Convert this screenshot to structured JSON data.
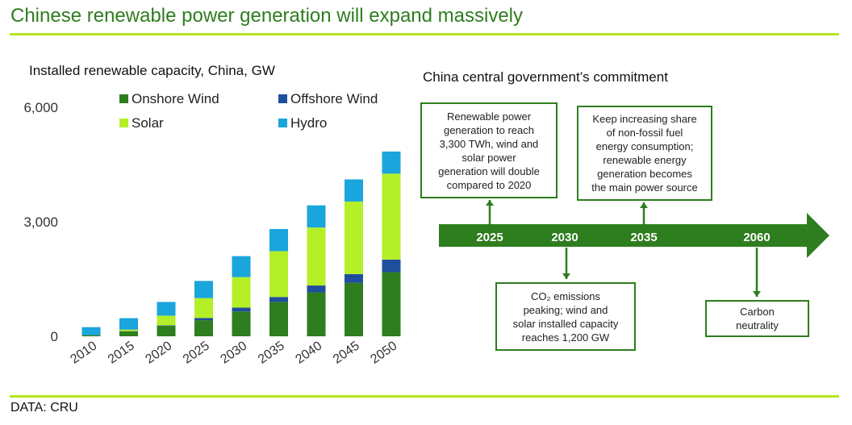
{
  "header": {
    "title": "Chinese renewable power generation will expand massively"
  },
  "footer": {
    "source": "DATA: CRU"
  },
  "colors": {
    "accent_rule": "#b5e61d",
    "brand_green": "#2e7d1e"
  },
  "chart_data": {
    "type": "bar",
    "stacked": true,
    "title": "Installed renewable capacity, China, GW",
    "categories": [
      "2010",
      "2015",
      "2020",
      "2025",
      "2030",
      "2035",
      "2040",
      "2045",
      "2050"
    ],
    "ylim": [
      0,
      6000
    ],
    "yticks": [
      "0",
      "3,000",
      "6,000"
    ],
    "ytick_values": [
      0,
      3000,
      6000
    ],
    "legend_position": "top",
    "series": [
      {
        "name": "Onshore Wind",
        "color": "#2e7d1e",
        "values": [
          30,
          130,
          280,
          420,
          650,
          900,
          1150,
          1400,
          1680
        ]
      },
      {
        "name": "Offshore Wind",
        "color": "#1f4e9c",
        "values": [
          0,
          5,
          10,
          60,
          100,
          130,
          180,
          230,
          330
        ]
      },
      {
        "name": "Solar",
        "color": "#b5ef28",
        "values": [
          0,
          40,
          250,
          520,
          800,
          1200,
          1520,
          1900,
          2250
        ]
      },
      {
        "name": "Hydro",
        "color": "#1aa5dc",
        "values": [
          210,
          300,
          360,
          450,
          550,
          580,
          580,
          580,
          580
        ]
      }
    ]
  },
  "timeline": {
    "title": "China central government’s commitment",
    "years": [
      "2025",
      "2030",
      "2035",
      "2060"
    ],
    "boxes": [
      {
        "lines": [
          "Renewable power",
          "generation to reach",
          "3,300 TWh, wind and",
          "solar power",
          "generation will double",
          "compared to 2020"
        ]
      },
      {
        "lines": [
          "CO₂ emissions",
          "peaking; wind and",
          "solar installed capacity",
          "reaches 1,200 GW"
        ]
      },
      {
        "lines": [
          "Keep increasing share",
          "of non-fossil fuel",
          "energy consumption;",
          "renewable energy",
          "generation becomes",
          "the main power source"
        ]
      },
      {
        "lines": [
          "Carbon",
          "neutrality"
        ]
      }
    ]
  }
}
